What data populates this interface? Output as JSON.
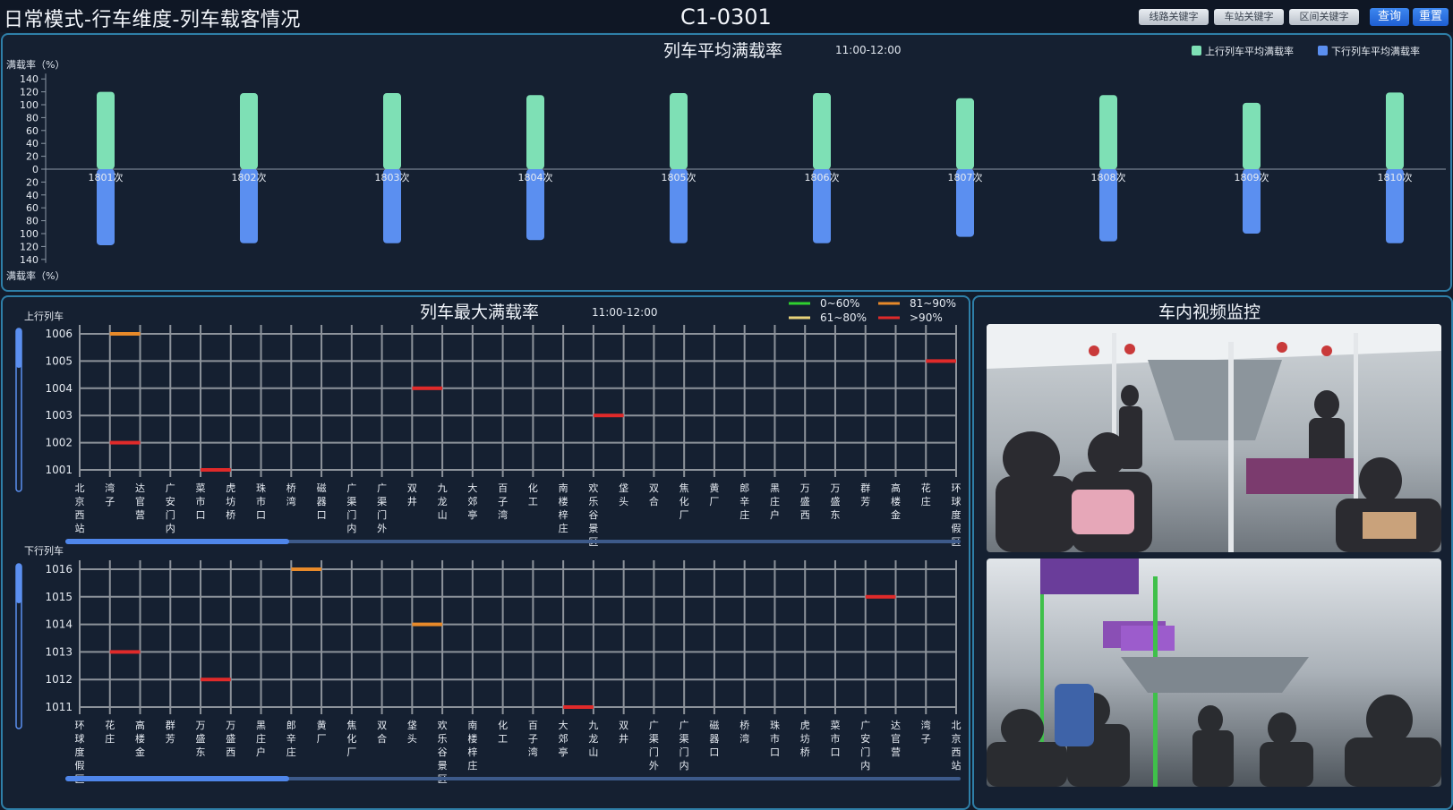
{
  "header": {
    "title": "日常模式-行车维度-列车载客情况",
    "train_code": "C1-0301",
    "buttons": [
      {
        "label": "线路关键字",
        "kind": "keyword"
      },
      {
        "label": "车站关键字",
        "kind": "keyword"
      },
      {
        "label": "区间关键字",
        "kind": "keyword"
      },
      {
        "label": "查询",
        "kind": "primary"
      },
      {
        "label": "重置",
        "kind": "primary"
      }
    ]
  },
  "avg_panel": {
    "title": "列车平均满载率",
    "time": "11:00-12:00",
    "legend": [
      {
        "label": "上行列车平均满载率",
        "color": "#7ee0b5"
      },
      {
        "label": "下行列车平均满载率",
        "color": "#5b8ff0"
      }
    ]
  },
  "chart_data": [
    {
      "type": "bar",
      "title": "列车平均满载率",
      "subtitle": "11:00-12:00",
      "ylabel_top": "满载率（%）",
      "ylabel_bottom": "满载率（%）",
      "yticks": [
        "140",
        "120",
        "100",
        "80",
        "60",
        "40",
        "20",
        "0",
        "20",
        "40",
        "60",
        "80",
        "100",
        "120",
        "140"
      ],
      "ylim": [
        -140,
        140
      ],
      "categories": [
        "1801次",
        "1802次",
        "1803次",
        "1804次",
        "1805次",
        "1806次",
        "1807次",
        "1808次",
        "1809次",
        "1810次"
      ],
      "series": [
        {
          "name": "上行列车平均满载率",
          "color": "#7ee0b5",
          "values": [
            120,
            118,
            118,
            115,
            118,
            118,
            110,
            115,
            103,
            119
          ]
        },
        {
          "name": "下行列车平均满载率",
          "color": "#5b8ff0",
          "values": [
            118,
            115,
            115,
            110,
            115,
            115,
            105,
            112,
            100,
            115
          ]
        }
      ],
      "legend_position": "top-right"
    },
    {
      "type": "heatmap",
      "title": "列车最大满载率",
      "subtitle": "11:00-12:00",
      "section_label": "上行列车",
      "rows": [
        "1006",
        "1005",
        "1004",
        "1003",
        "1002",
        "1001"
      ],
      "stations": [
        "北京西站",
        "湾子",
        "达官营",
        "广安门内",
        "菜市口",
        "虎坊桥",
        "珠市口",
        "桥湾",
        "磁器口",
        "广渠门内",
        "广渠门外",
        "双井",
        "九龙山",
        "大郊亭",
        "百子湾",
        "化工",
        "南楼梓庄",
        "欢乐谷景区",
        "垡头",
        "双合",
        "焦化厂",
        "黄厂",
        "郎辛庄",
        "黑庄户",
        "万盛西",
        "万盛东",
        "群芳",
        "高楼金",
        "花庄",
        "环球度假区"
      ],
      "marks": [
        {
          "row": "1006",
          "station": 1,
          "color": "#e88a2a"
        },
        {
          "row": "1005",
          "station": 28,
          "color": "#e02a2a"
        },
        {
          "row": "1004",
          "station": 11,
          "color": "#e02a2a"
        },
        {
          "row": "1003",
          "station": 17,
          "color": "#e02a2a"
        },
        {
          "row": "1002",
          "station": 1,
          "color": "#e02a2a"
        },
        {
          "row": "1001",
          "station": 4,
          "color": "#e02a2a"
        }
      ]
    },
    {
      "type": "heatmap",
      "section_label": "下行列车",
      "rows": [
        "1016",
        "1015",
        "1014",
        "1013",
        "1012",
        "1011"
      ],
      "stations": [
        "环球度假区",
        "花庄",
        "高楼金",
        "群芳",
        "万盛东",
        "万盛西",
        "黑庄户",
        "郎辛庄",
        "黄厂",
        "焦化厂",
        "双合",
        "垡头",
        "欢乐谷景区",
        "南楼梓庄",
        "化工",
        "百子湾",
        "大郊亭",
        "九龙山",
        "双井",
        "广渠门外",
        "广渠门内",
        "磁器口",
        "桥湾",
        "珠市口",
        "虎坊桥",
        "菜市口",
        "广安门内",
        "达官营",
        "湾子",
        "北京西站"
      ],
      "marks": [
        {
          "row": "1016",
          "station": 7,
          "color": "#e88a2a"
        },
        {
          "row": "1015",
          "station": 26,
          "color": "#e02a2a"
        },
        {
          "row": "1014",
          "station": 11,
          "color": "#e88a2a"
        },
        {
          "row": "1013",
          "station": 1,
          "color": "#e02a2a"
        },
        {
          "row": "1012",
          "station": 4,
          "color": "#e02a2a"
        },
        {
          "row": "1011",
          "station": 16,
          "color": "#e02a2a"
        }
      ]
    }
  ],
  "max_panel": {
    "title": "列车最大满载率",
    "time": "11:00-12:00",
    "legend": [
      {
        "label": "0~60%",
        "color": "#2fd12f"
      },
      {
        "label": "81~90%",
        "color": "#e88a2a"
      },
      {
        "label": "61~80%",
        "color": "#e8d27a"
      },
      {
        "label": ">90%",
        "color": "#e02a2a"
      }
    ],
    "up_label": "上行列车",
    "down_label": "下行列车",
    "up_scroll": 0.25,
    "down_scroll": 0.25
  },
  "video_panel": {
    "title": "车内视频监控"
  }
}
